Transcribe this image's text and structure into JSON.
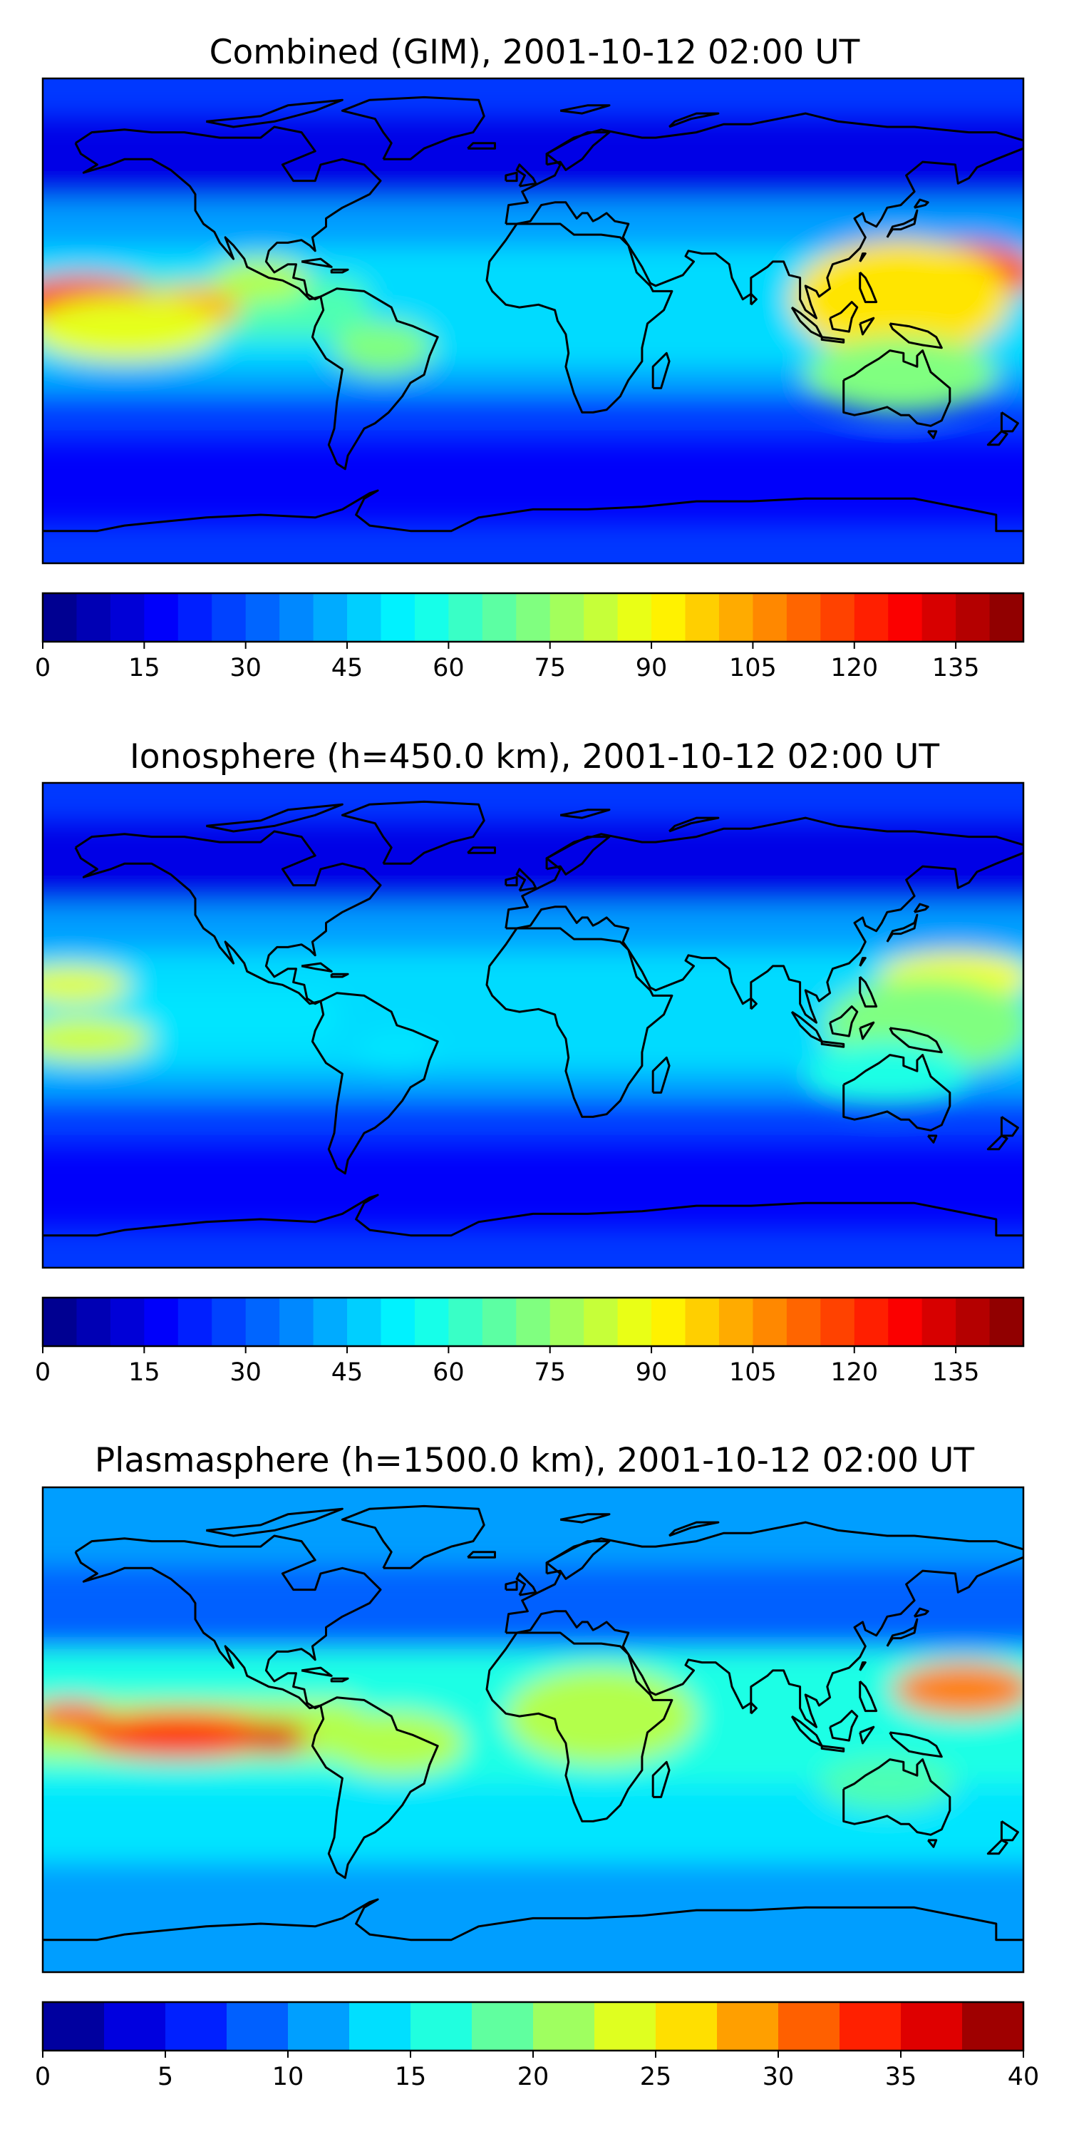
{
  "panels": [
    {
      "title": "Combined (GIM), 2001-10-12 02:00 UT",
      "colorbar": {
        "min": 0,
        "max": 145,
        "levels": 29,
        "ticks": [
          "0",
          "15",
          "30",
          "45",
          "60",
          "75",
          "90",
          "105",
          "120",
          "135"
        ],
        "tick_values": [
          0,
          15,
          30,
          45,
          60,
          75,
          90,
          105,
          120,
          135
        ]
      },
      "features": [
        {
          "kind": "tongue",
          "lat": 5,
          "lon_min": -180,
          "lon_max": -60,
          "width": 22,
          "level": 0.45
        },
        {
          "kind": "blob",
          "lat": 7,
          "lon": -165,
          "r_lon": 28,
          "r_lat": 10,
          "level": 0.82
        },
        {
          "kind": "blob",
          "lat": 5,
          "lon": -125,
          "r_lon": 18,
          "r_lat": 8,
          "level": 0.7
        },
        {
          "kind": "blob",
          "lat": -3,
          "lon": -150,
          "r_lon": 35,
          "r_lat": 12,
          "level": 0.6
        },
        {
          "kind": "blob",
          "lat": 18,
          "lon": 158,
          "r_lon": 28,
          "r_lat": 11,
          "level": 0.8
        },
        {
          "kind": "blob",
          "lat": 8,
          "lon": 135,
          "r_lon": 40,
          "r_lat": 22,
          "level": 0.65
        },
        {
          "kind": "blob",
          "lat": -20,
          "lon": 135,
          "r_lon": 35,
          "r_lat": 14,
          "level": 0.5
        },
        {
          "kind": "blob",
          "lat": -10,
          "lon": -55,
          "r_lon": 18,
          "r_lat": 10,
          "level": 0.5
        },
        {
          "kind": "blob",
          "lat": 15,
          "lon": -100,
          "r_lon": 18,
          "r_lat": 8,
          "level": 0.55
        }
      ]
    },
    {
      "title": "Ionosphere  (h=450.0 km), 2001-10-12 02:00 UT",
      "colorbar": {
        "min": 0,
        "max": 145,
        "levels": 29,
        "ticks": [
          "0",
          "15",
          "30",
          "45",
          "60",
          "75",
          "90",
          "105",
          "120",
          "135"
        ],
        "tick_values": [
          0,
          15,
          30,
          45,
          60,
          75,
          90,
          105,
          120,
          135
        ]
      },
      "features": [
        {
          "kind": "tongue",
          "lat": 3,
          "lon_min": -180,
          "lon_max": -70,
          "width": 20,
          "level": 0.35
        },
        {
          "kind": "blob",
          "lat": 15,
          "lon": -170,
          "r_lon": 22,
          "r_lat": 7,
          "level": 0.6
        },
        {
          "kind": "blob",
          "lat": -5,
          "lon": -165,
          "r_lon": 25,
          "r_lat": 8,
          "level": 0.58
        },
        {
          "kind": "blob",
          "lat": 18,
          "lon": 155,
          "r_lon": 28,
          "r_lat": 9,
          "level": 0.62
        },
        {
          "kind": "blob",
          "lat": 0,
          "lon": 145,
          "r_lon": 38,
          "r_lat": 18,
          "level": 0.5
        },
        {
          "kind": "blob",
          "lat": -18,
          "lon": 130,
          "r_lon": 30,
          "r_lat": 12,
          "level": 0.4
        },
        {
          "kind": "blob",
          "lat": -10,
          "lon": -50,
          "r_lon": 15,
          "r_lat": 8,
          "level": 0.35
        }
      ]
    },
    {
      "title": "Plasmasphere (h=1500.0 km), 2001-10-12 02:00 UT",
      "colorbar": {
        "min": 0,
        "max": 40,
        "levels": 16,
        "ticks": [
          "0",
          "5",
          "10",
          "15",
          "20",
          "25",
          "30",
          "35",
          "40"
        ],
        "tick_values": [
          0,
          5,
          10,
          15,
          20,
          25,
          30,
          35,
          40
        ]
      },
      "features": [
        {
          "kind": "tongue",
          "lat": 0,
          "lon_min": -180,
          "lon_max": -60,
          "width": 22,
          "level": 0.55
        },
        {
          "kind": "blob",
          "lat": -2,
          "lon": -130,
          "r_lon": 35,
          "r_lat": 9,
          "level": 0.82
        },
        {
          "kind": "blob",
          "lat": -3,
          "lon": -95,
          "r_lon": 12,
          "r_lat": 6,
          "level": 0.9
        },
        {
          "kind": "blob",
          "lat": 5,
          "lon": -170,
          "r_lon": 14,
          "r_lat": 6,
          "level": 0.78
        },
        {
          "kind": "blob",
          "lat": 15,
          "lon": 158,
          "r_lon": 26,
          "r_lat": 10,
          "level": 0.75
        },
        {
          "kind": "blob",
          "lat": 5,
          "lon": 25,
          "r_lon": 35,
          "r_lat": 18,
          "level": 0.55
        },
        {
          "kind": "blob",
          "lat": -5,
          "lon": -50,
          "r_lon": 25,
          "r_lat": 12,
          "level": 0.55
        },
        {
          "kind": "blob",
          "lat": -20,
          "lon": 130,
          "r_lon": 25,
          "r_lat": 10,
          "level": 0.45
        }
      ]
    }
  ],
  "colors": {
    "frame": "#000000",
    "coastline": "#000000"
  }
}
